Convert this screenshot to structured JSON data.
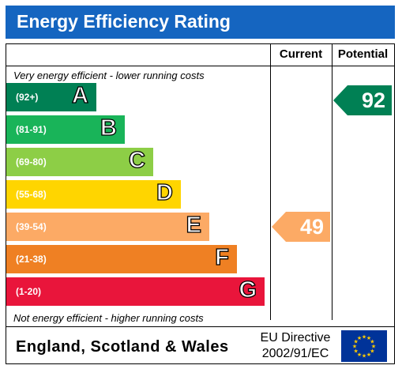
{
  "title": "Energy Efficiency Rating",
  "columns": {
    "current": "Current",
    "potential": "Potential"
  },
  "top_note": "Very energy efficient - lower running costs",
  "bottom_note": "Not energy efficient - higher running costs",
  "bands": [
    {
      "range": "(92+)",
      "letter": "A",
      "color": "#008054"
    },
    {
      "range": "(81-91)",
      "letter": "B",
      "color": "#19b459"
    },
    {
      "range": "(69-80)",
      "letter": "C",
      "color": "#8dce46"
    },
    {
      "range": "(55-68)",
      "letter": "D",
      "color": "#ffd500"
    },
    {
      "range": "(39-54)",
      "letter": "E",
      "color": "#fcaa65"
    },
    {
      "range": "(21-38)",
      "letter": "F",
      "color": "#ef8023"
    },
    {
      "range": "(1-20)",
      "letter": "G",
      "color": "#e9153b"
    }
  ],
  "current": {
    "value": "49",
    "band": "E",
    "color": "#fcaa65"
  },
  "potential": {
    "value": "92",
    "band": "A",
    "color": "#008054"
  },
  "footer": {
    "country": "England, Scotland & Wales",
    "directive_line1": "EU Directive",
    "directive_line2": "2002/91/EC"
  },
  "flag_icon": "eu-flag-icon"
}
